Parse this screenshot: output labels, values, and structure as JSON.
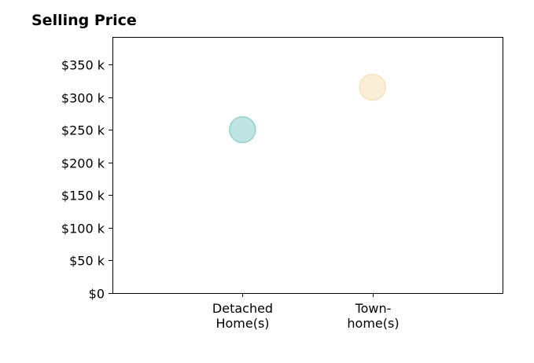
{
  "chart_data": {
    "type": "scatter",
    "title": "Selling Price",
    "xlabel": "",
    "ylabel": "",
    "categories": [
      [
        "Detached",
        "Home(s)"
      ],
      [
        "Town-",
        "home(s)"
      ]
    ],
    "series": [
      {
        "values": [
          250000,
          315000
        ]
      }
    ],
    "point_colors": [
      "#7fc9c4",
      "#f5ddb0"
    ],
    "ylim": [
      0,
      392000
    ],
    "yticks": [
      0,
      50000,
      100000,
      150000,
      200000,
      250000,
      300000,
      350000
    ],
    "ytick_labels": [
      "$0",
      "$50 k",
      "$100 k",
      "$150 k",
      "$200 k",
      "$250 k",
      "$300 k",
      "$350 k"
    ],
    "grid": false,
    "legend": "none"
  }
}
